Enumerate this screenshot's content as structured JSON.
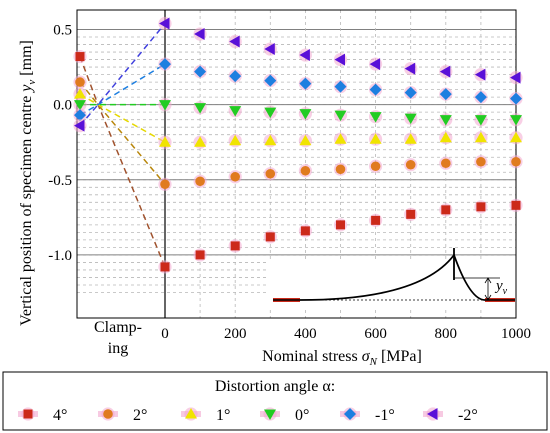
{
  "chart_data": {
    "type": "scatter",
    "title": "",
    "xlabel": "Nominal stress σ_N [MPa]",
    "xlabel_main": "Nominal stress ",
    "xlabel_sym": "σ",
    "xlabel_sub": "N",
    "xlabel_unit": " [MPa]",
    "ylabel": "Vertical position of specimen centre y_v [mm]",
    "ylabel_main": "Vertical position of specimen centre ",
    "ylabel_sym": "y",
    "ylabel_sub": "v",
    "ylabel_unit": " [mm]",
    "xlim": [
      0,
      1000
    ],
    "ylim": [
      -1.3,
      0.55
    ],
    "x_ticks": [
      0,
      200,
      400,
      600,
      800,
      1000
    ],
    "x_tick_labels": [
      "0",
      "200",
      "400",
      "600",
      "800",
      "1000"
    ],
    "y_ticks": [
      0.5,
      0.0,
      -0.5,
      -1.0
    ],
    "y_tick_labels": [
      "0.5",
      "0.0",
      "-0.5",
      "-1.0"
    ],
    "clamping_label_1": "Clamp-",
    "clamping_label_2": "ing",
    "grid": true,
    "legend_position": "bottom",
    "legend_title": "Distortion angle α:",
    "inset_label_sym": "y",
    "inset_label_sub": "v",
    "x_stress": [
      0,
      100,
      200,
      300,
      400,
      500,
      600,
      700,
      800,
      900,
      1000
    ],
    "series": [
      {
        "name": "4°",
        "marker": "square",
        "color": "#cc2a1a",
        "line_color": "#a0522d",
        "unclamped": 0.32,
        "clamping_point": 0.0,
        "values": [
          -1.08,
          -1.0,
          -0.94,
          -0.88,
          -0.84,
          -0.8,
          -0.77,
          -0.73,
          -0.7,
          -0.68,
          -0.67
        ]
      },
      {
        "name": "2°",
        "marker": "circle",
        "color": "#e07b1f",
        "line_color": "#b8860b",
        "unclamped": 0.15,
        "clamping_point": 0.0,
        "values": [
          -0.53,
          -0.51,
          -0.48,
          -0.46,
          -0.44,
          -0.43,
          -0.41,
          -0.4,
          -0.39,
          -0.38,
          -0.38
        ]
      },
      {
        "name": "1°",
        "marker": "triangle-up",
        "color": "#f0e400",
        "line_color": "#e6d800",
        "unclamped": 0.07,
        "clamping_point": 0.0,
        "values": [
          -0.25,
          -0.25,
          -0.24,
          -0.24,
          -0.24,
          -0.23,
          -0.23,
          -0.23,
          -0.22,
          -0.22,
          -0.22
        ]
      },
      {
        "name": "0°",
        "marker": "triangle-down",
        "color": "#22cc22",
        "line_color": "#22cc22",
        "unclamped": 0.0,
        "clamping_point": 0.0,
        "values": [
          0.0,
          -0.02,
          -0.04,
          -0.05,
          -0.06,
          -0.07,
          -0.08,
          -0.09,
          -0.1,
          -0.1,
          -0.1
        ]
      },
      {
        "name": "-1°",
        "marker": "diamond",
        "color": "#1e7fe0",
        "line_color": "#1e7fe0",
        "unclamped": -0.07,
        "clamping_point": 0.0,
        "values": [
          0.27,
          0.22,
          0.19,
          0.16,
          0.14,
          0.12,
          0.1,
          0.08,
          0.07,
          0.05,
          0.04
        ]
      },
      {
        "name": "-2°",
        "marker": "triangle-left",
        "color": "#5a10d8",
        "line_color": "#4040dd",
        "unclamped": -0.14,
        "clamping_point": 0.0,
        "values": [
          0.54,
          0.47,
          0.42,
          0.37,
          0.33,
          0.3,
          0.27,
          0.24,
          0.22,
          0.2,
          0.18
        ]
      }
    ]
  }
}
